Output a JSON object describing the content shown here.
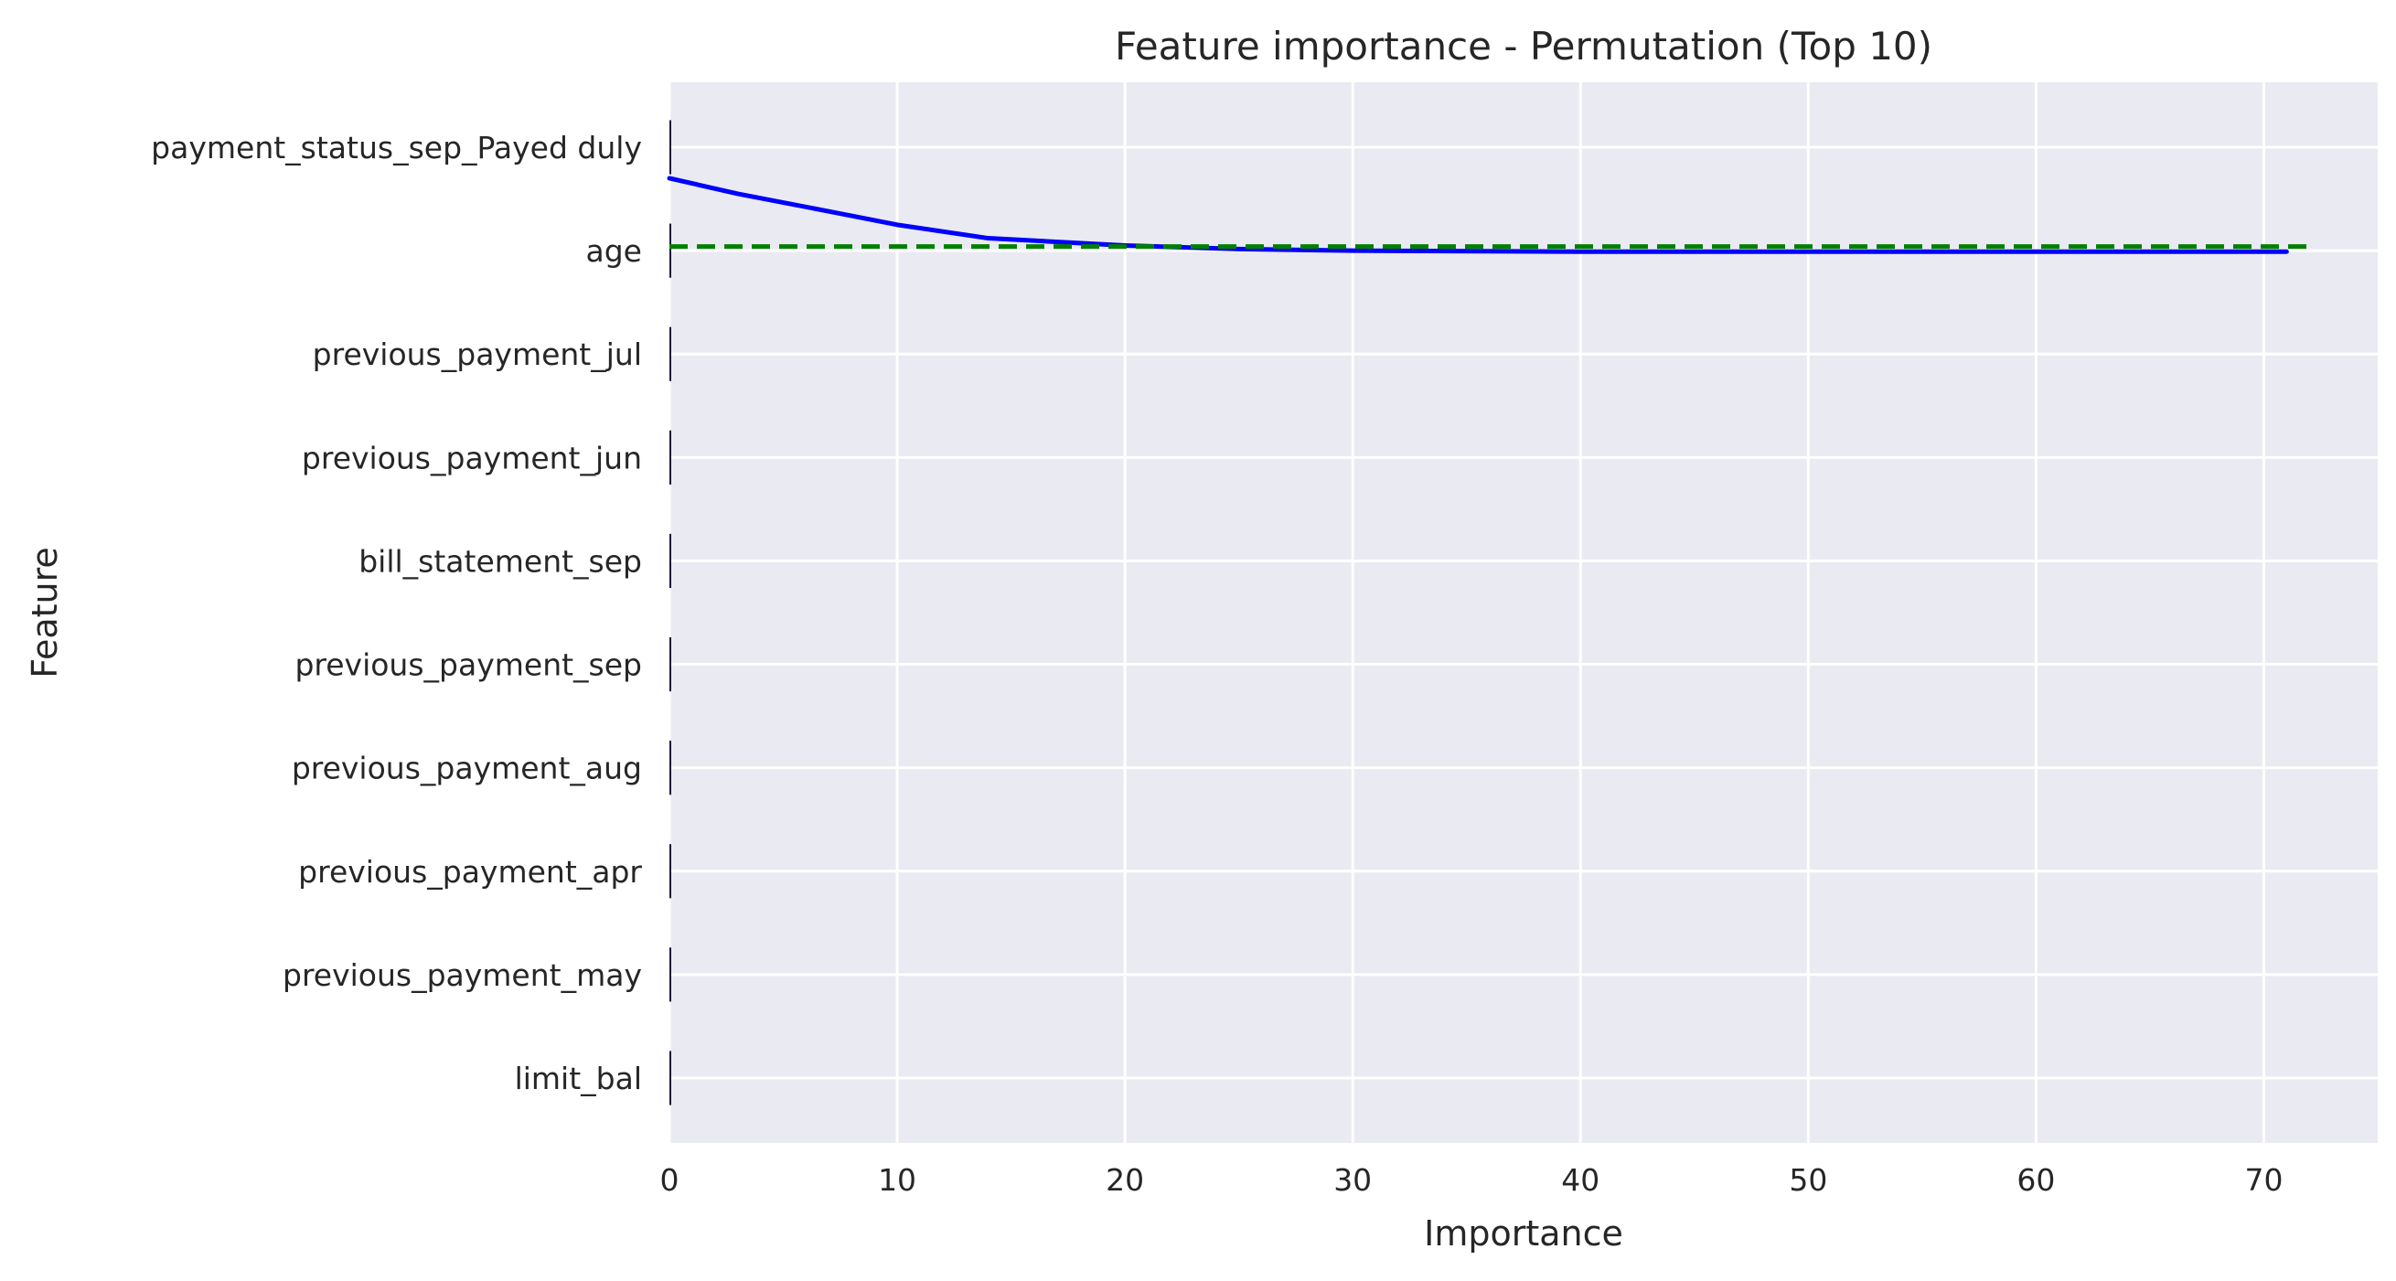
{
  "chart_data": {
    "type": "bar",
    "orientation": "horizontal",
    "title": "Feature importance - Permutation (Top 10)",
    "xlabel": "Importance",
    "ylabel": "Feature",
    "xlim": [
      0,
      75
    ],
    "xticks": [
      0,
      10,
      20,
      30,
      40,
      50,
      60,
      70
    ],
    "grid": true,
    "categories": [
      "payment_status_sep_Payed duly",
      "age",
      "previous_payment_jul",
      "previous_payment_jun",
      "bill_statement_sep",
      "previous_payment_sep",
      "previous_payment_aug",
      "previous_payment_apr",
      "previous_payment_may",
      "limit_bal"
    ],
    "values": [
      0.003,
      0.002,
      0.001,
      0.001,
      0.0005,
      0.0005,
      0.0005,
      0.0005,
      0.0005,
      0.0005
    ],
    "bar_color": "#1a1a3a",
    "overlays": [
      {
        "kind": "line",
        "color": "#0000ff",
        "style": "solid",
        "x": [
          0,
          3,
          7,
          10,
          14,
          20,
          25,
          30,
          40,
          50,
          60,
          71
        ],
        "y": [
          0.3,
          0.45,
          0.62,
          0.75,
          0.88,
          0.95,
          0.985,
          1.0,
          1.01,
          1.01,
          1.01,
          1.01
        ]
      },
      {
        "kind": "line",
        "color": "#008000",
        "style": "dashed",
        "x": [
          0,
          72
        ],
        "y": [
          0.96,
          0.96
        ]
      }
    ]
  }
}
